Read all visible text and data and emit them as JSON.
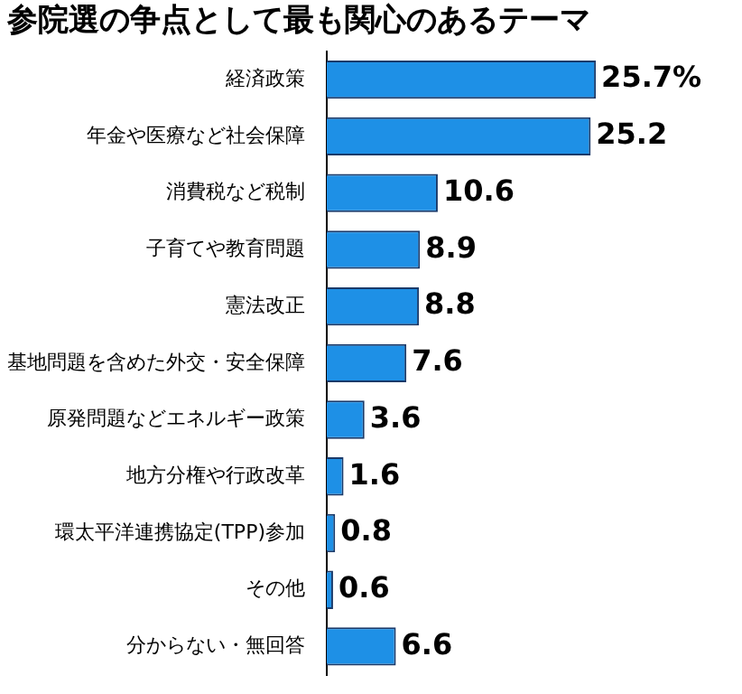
{
  "chart_data": {
    "type": "bar",
    "orientation": "horizontal",
    "title": "参院選の争点として最も関心のあるテーマ",
    "categories": [
      "経済政策",
      "年金や医療など社会保障",
      "消費税など税制",
      "子育てや教育問題",
      "憲法改正",
      "基地問題を含めた外交・安全保障",
      "原発問題などエネルギー政策",
      "地方分権や行政改革",
      "環太平洋連携協定(TPP)参加",
      "その他",
      "分からない・無回答"
    ],
    "values": [
      25.7,
      25.2,
      10.6,
      8.9,
      8.8,
      7.6,
      3.6,
      1.6,
      0.8,
      0.6,
      6.6
    ],
    "value_labels": [
      "25.7%",
      "25.2",
      "10.6",
      "8.9",
      "8.8",
      "7.6",
      "3.6",
      "1.6",
      "0.8",
      "0.6",
      "6.6"
    ],
    "color": "#1e90e6"
  }
}
